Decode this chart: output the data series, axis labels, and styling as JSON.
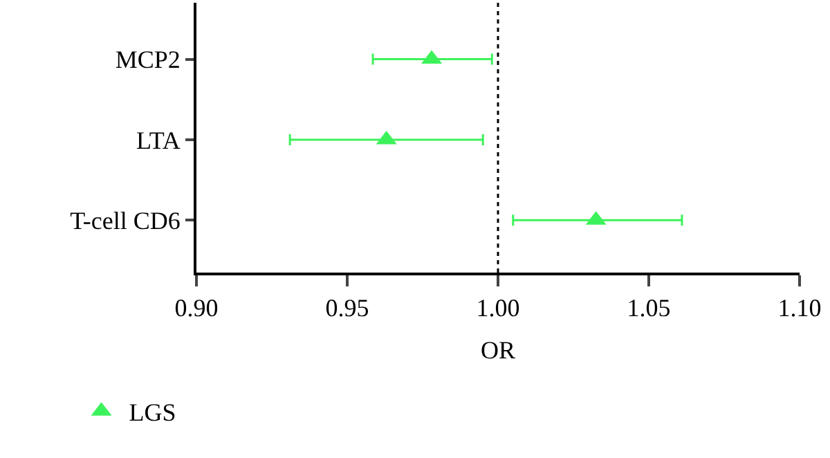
{
  "chart_data": {
    "type": "scatter",
    "orientation": "horizontal",
    "xlabel": "OR",
    "categories": [
      "MCP2",
      "LTA",
      "T-cell CD6"
    ],
    "series": [
      {
        "name": "LGS",
        "color": "#3cf25a",
        "values": [
          0.978,
          0.963,
          1.0325
        ],
        "errors": [
          [
            0.9585,
            0.998
          ],
          [
            0.931,
            0.995
          ],
          [
            1.005,
            1.061
          ]
        ]
      }
    ],
    "xlim": [
      0.9,
      1.1
    ],
    "xticks": [
      {
        "value": 0.9,
        "label": "0.90"
      },
      {
        "value": 0.95,
        "label": "0.95"
      },
      {
        "value": 1.0,
        "label": "1.00"
      },
      {
        "value": 1.05,
        "label": "1.05"
      },
      {
        "value": 1.1,
        "label": "1.10"
      }
    ],
    "ref_lines": [
      {
        "axis": "x",
        "value": 1.0,
        "label": null,
        "color": "#000000",
        "line_style": "dotted"
      }
    ],
    "marker": "triangle",
    "legend": "bottom left"
  }
}
